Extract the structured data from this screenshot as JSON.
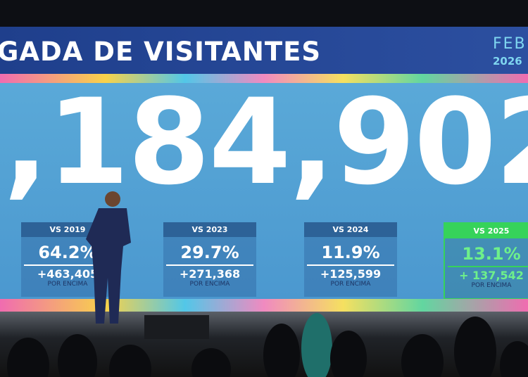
{
  "screen": {
    "title": "GADA DE VISITANTES",
    "month": "FEB",
    "year": "2026",
    "total": ",184,902",
    "cards": [
      {
        "label": "VS 2019",
        "pct": "64.2%",
        "delta": "+463,405",
        "note": "POR ENCIMA"
      },
      {
        "label": "VS 2023",
        "pct": "29.7%",
        "delta": "+271,368",
        "note": "POR ENCIMA"
      },
      {
        "label": "VS 2024",
        "pct": "11.9%",
        "delta": "+125,599",
        "note": "POR ENCIMA"
      },
      {
        "label": "VS 2025",
        "pct": "13.1%",
        "delta": "+ 137,542",
        "note": "POR ENCIMA"
      }
    ]
  }
}
